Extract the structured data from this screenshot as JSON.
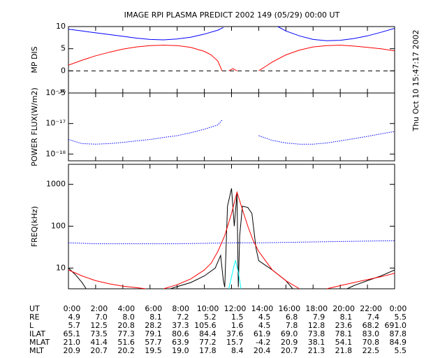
{
  "title": "IMAGE  RPI PLASMA PREDICT 2002 149 (05/29) 00:00 UT",
  "timestamp": "Thu Oct 10 15:47:17 2002",
  "chart_data": [
    {
      "type": "line",
      "ylabel": "MP DIS",
      "xlim": [
        0,
        24
      ],
      "ylim": [
        -5,
        10
      ],
      "yticks": [
        -5,
        0,
        5,
        10
      ],
      "hlines": [
        0
      ],
      "series": [
        {
          "color": "#0000ff",
          "x": [
            0,
            1,
            2,
            3,
            4,
            5,
            6,
            7,
            8,
            9,
            10,
            11,
            11.4
          ],
          "values": [
            9.4,
            9.0,
            8.6,
            8.2,
            7.8,
            7.4,
            7.1,
            7.0,
            7.2,
            7.6,
            8.3,
            9.2,
            9.8
          ]
        },
        {
          "color": "#ff0000",
          "x": [
            0,
            1,
            2,
            3,
            4,
            5,
            6,
            7,
            8,
            9,
            10,
            10.5,
            11,
            11.3
          ],
          "values": [
            1.3,
            2.4,
            3.4,
            4.2,
            4.9,
            5.4,
            5.7,
            5.8,
            5.7,
            5.3,
            4.4,
            3.6,
            2.2,
            0
          ]
        },
        {
          "color": "#ff0000",
          "x": [
            11.8,
            12.1,
            12.4
          ],
          "values": [
            0,
            0.5,
            0
          ]
        },
        {
          "color": "#ff0000",
          "x": [
            14,
            15,
            16,
            17,
            18,
            19,
            20,
            21,
            22,
            23,
            24
          ],
          "values": [
            0,
            2.0,
            3.6,
            4.7,
            5.4,
            5.7,
            5.8,
            5.6,
            5.3,
            5.0,
            4.5
          ]
        },
        {
          "color": "#0000ff",
          "x": [
            15.4,
            16,
            17,
            18,
            19,
            20,
            21,
            22,
            23,
            24
          ],
          "values": [
            10,
            9.0,
            7.9,
            7.1,
            6.8,
            6.9,
            7.3,
            7.9,
            8.7,
            9.6
          ]
        }
      ]
    },
    {
      "type": "line",
      "ylabel": "POWER FLUX(W/m2)",
      "log_y": true,
      "xlim": [
        0,
        24
      ],
      "ylim": [
        6e-19,
        1e-16
      ],
      "yticks": [
        {
          "value": 1e-18,
          "label": "10⁻¹⁸"
        },
        {
          "value": 1e-17,
          "label": "10⁻¹⁷"
        },
        {
          "value": 1e-16,
          "label": "10⁻¹⁶"
        }
      ],
      "series": [
        {
          "color": "#0000ff",
          "style": "dotted",
          "x": [
            0,
            1,
            2,
            3,
            4,
            5,
            6,
            7,
            8,
            9,
            10,
            11,
            11.3
          ],
          "values": [
            3e-18,
            2.2e-18,
            2.1e-18,
            2.2e-18,
            2.4e-18,
            2.7e-18,
            3e-18,
            3.5e-18,
            4e-18,
            5e-18,
            6.5e-18,
            9e-18,
            1.3e-17
          ]
        },
        {
          "color": "#0000ff",
          "style": "dotted",
          "x": [
            14,
            15,
            16,
            17,
            18,
            19,
            20,
            21,
            22,
            23,
            24
          ],
          "values": [
            4e-18,
            2.8e-18,
            2.3e-18,
            2.1e-18,
            2.1e-18,
            2.3e-18,
            2.7e-18,
            3.2e-18,
            3.8e-18,
            4.6e-18,
            5.5e-18
          ]
        }
      ]
    },
    {
      "type": "line",
      "ylabel": "FREQ(kHz)",
      "log_y": true,
      "xlim": [
        0,
        24
      ],
      "ylim": [
        3.2,
        3000
      ],
      "yticks": [
        10,
        100,
        1000
      ],
      "xticks": [
        {
          "value": 0,
          "label": "0:00"
        },
        {
          "value": 2,
          "label": "2:00"
        },
        {
          "value": 4,
          "label": "4:00"
        },
        {
          "value": 6,
          "label": "6:00"
        },
        {
          "value": 8,
          "label": "8:00"
        },
        {
          "value": 10,
          "label": "10:00"
        },
        {
          "value": 12,
          "label": "12:00"
        },
        {
          "value": 14,
          "label": "14:00"
        },
        {
          "value": 16,
          "label": "16:00"
        },
        {
          "value": 18,
          "label": "18:00"
        },
        {
          "value": 20,
          "label": "20:00"
        },
        {
          "value": 22,
          "label": "22:00"
        },
        {
          "value": 24,
          "label": "0:00"
        }
      ],
      "series": [
        {
          "color": "#0000ff",
          "style": "dotted",
          "x": [
            0,
            2,
            4,
            6,
            8,
            10,
            12,
            14,
            16,
            18,
            20,
            22,
            24
          ],
          "values": [
            40,
            38,
            38,
            38,
            38,
            39,
            40,
            40,
            41,
            42,
            43,
            44,
            45
          ]
        },
        {
          "color": "#000000",
          "x": [
            0,
            0.5,
            1,
            1.3
          ],
          "values": [
            10,
            7,
            4.5,
            3.2
          ]
        },
        {
          "color": "#000000",
          "x": [
            7.5,
            8,
            9,
            10,
            10.8,
            11.2,
            11.4,
            11.5,
            11.7,
            12,
            12.2,
            12.4,
            12.5,
            12.6,
            12.8,
            13.2,
            13.5,
            13.8,
            14,
            15,
            16,
            16.5
          ],
          "values": [
            3.2,
            3.6,
            4.5,
            6.5,
            10,
            20,
            5,
            3.5,
            300,
            800,
            100,
            600,
            3.5,
            60,
            300,
            280,
            200,
            30,
            15,
            9,
            5,
            3.2
          ]
        },
        {
          "color": "#000000",
          "x": [
            20.5,
            21,
            22,
            23,
            24
          ],
          "values": [
            3.2,
            3.8,
            5,
            6.5,
            9
          ]
        },
        {
          "color": "#ff0000",
          "x": [
            0,
            1,
            2,
            3,
            4,
            5,
            5.7
          ],
          "values": [
            9,
            6.5,
            5,
            4.2,
            3.7,
            3.4,
            3.2
          ]
        },
        {
          "color": "#ff0000",
          "x": [
            7,
            8,
            9,
            10,
            10.5,
            11,
            11.5,
            12,
            12.4,
            12.8,
            13.2,
            13.6,
            14,
            14.5,
            15,
            16,
            17
          ],
          "values": [
            3.2,
            4,
            5.5,
            9,
            13,
            25,
            60,
            200,
            650,
            250,
            100,
            45,
            25,
            15,
            9,
            5,
            3.2
          ]
        },
        {
          "color": "#ff0000",
          "x": [
            19,
            20,
            21,
            22,
            23,
            24
          ],
          "values": [
            3.2,
            3.8,
            4.5,
            5.3,
            6.2,
            7.5
          ]
        },
        {
          "color": "#00ffff",
          "x": [
            11.8,
            12.2,
            12.3,
            12.5,
            12.7
          ],
          "values": [
            3.2,
            12,
            15,
            8,
            3.2
          ]
        }
      ]
    }
  ],
  "ephemeris": {
    "ut_label": "UT",
    "rows": [
      {
        "label": "RE",
        "values": [
          "4.9",
          "7.0",
          "8.0",
          "8.1",
          "7.2",
          "5.2",
          "1.5",
          "4.5",
          "6.8",
          "7.9",
          "8.1",
          "7.4",
          "5.5"
        ]
      },
      {
        "label": "L",
        "values": [
          "5.7",
          "12.5",
          "20.8",
          "28.2",
          "37.3",
          "105.6",
          "1.6",
          "4.5",
          "7.8",
          "12.8",
          "23.6",
          "68.2",
          "691.0"
        ]
      },
      {
        "label": "ILAT",
        "values": [
          "65.1",
          "73.5",
          "77.3",
          "79.1",
          "80.6",
          "84.4",
          "37.6",
          "61.9",
          "69.0",
          "73.8",
          "78.1",
          "83.0",
          "87.8"
        ]
      },
      {
        "label": "MLAT",
        "values": [
          "21.0",
          "41.4",
          "51.6",
          "57.7",
          "63.9",
          "77.2",
          "15.7",
          "-4.2",
          "20.9",
          "38.1",
          "54.1",
          "70.8",
          "84.9"
        ]
      },
      {
        "label": "MLT",
        "values": [
          "20.9",
          "20.7",
          "20.2",
          "19.5",
          "19.0",
          "17.8",
          "8.4",
          "20.4",
          "20.7",
          "21.3",
          "21.8",
          "22.5",
          "5.5"
        ]
      }
    ]
  }
}
